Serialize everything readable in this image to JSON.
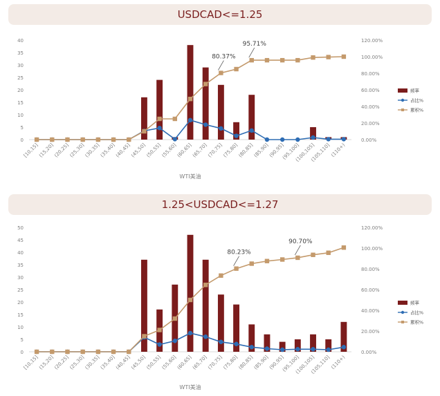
{
  "chart_data": [
    {
      "type": "bar",
      "title": "USDCAD<=1.25",
      "xlabel": "WTI美油",
      "categories": [
        "[10,15]",
        "(15,20]",
        "(20,25]",
        "(25,30]",
        "(30,35]",
        "(35,40]",
        "(40,45]",
        "(45,50]",
        "(50,55]",
        "(55,60]",
        "(60,65]",
        "(65,70]",
        "(70,75]",
        "(75,80]",
        "(80,85]",
        "(85,90]",
        "(90,95]",
        "(95,100]",
        "(100,105]",
        "(105,110]",
        "(110+)"
      ],
      "ylim": [
        0,
        40
      ],
      "yticks": [
        "0",
        "5",
        "10",
        "15",
        "20",
        "25",
        "30",
        "35",
        "40"
      ],
      "y2lim": [
        0,
        1.2
      ],
      "y2ticks": [
        "0.00%",
        "20.00%",
        "40.00%",
        "60.00%",
        "80.00%",
        "100.00%",
        "120.00%"
      ],
      "legend_position": "right",
      "series": [
        {
          "name": "频率",
          "kind": "bar",
          "axis": "left",
          "color": "#7b1c1c",
          "values": [
            0,
            0,
            0,
            0,
            0,
            0,
            0,
            17,
            24,
            1,
            38,
            29,
            22,
            7,
            18,
            0,
            0,
            0,
            5,
            1,
            1
          ]
        },
        {
          "name": "占比%",
          "kind": "line",
          "axis": "right",
          "color": "#2e6db4",
          "values": [
            0,
            0,
            0,
            0,
            0,
            0,
            0,
            0.105,
            0.14,
            0.005,
            0.235,
            0.18,
            0.135,
            0.045,
            0.11,
            0,
            0,
            0,
            0.025,
            0.005,
            0.005
          ]
        },
        {
          "name": "累积%",
          "kind": "line",
          "axis": "right",
          "color": "#c49a6c",
          "values": [
            0,
            0,
            0,
            0,
            0,
            0,
            0,
            0.1,
            0.25,
            0.25,
            0.49,
            0.67,
            0.8037,
            0.85,
            0.9571,
            0.9571,
            0.9571,
            0.9571,
            0.99,
            0.995,
            1.0
          ]
        }
      ],
      "annotations": [
        {
          "text": "80.37%",
          "index": 12
        },
        {
          "text": "95.71%",
          "index": 14
        }
      ]
    },
    {
      "type": "bar",
      "title": "1.25<USDCAD<=1.27",
      "xlabel": "WTI美油",
      "categories": [
        "[10,15]",
        "(15,20]",
        "(20,25]",
        "(25,30]",
        "(30,35]",
        "(35,40]",
        "(40,45]",
        "(45,50]",
        "(50,55]",
        "(55,60]",
        "(60,65]",
        "(65,70]",
        "(70,75]",
        "(75,80]",
        "(80,85]",
        "(85,90]",
        "(90,95]",
        "(95,100]",
        "(100,105]",
        "(105,110]",
        "(110+)"
      ],
      "ylim": [
        0,
        50
      ],
      "yticks": [
        "0",
        "5",
        "10",
        "15",
        "20",
        "25",
        "30",
        "35",
        "40",
        "45",
        "50"
      ],
      "y2lim": [
        0,
        1.2
      ],
      "y2ticks": [
        "0.00%",
        "20.00%",
        "40.00%",
        "60.00%",
        "80.00%",
        "100.00%",
        "120.00%"
      ],
      "legend_position": "right",
      "series": [
        {
          "name": "频率",
          "kind": "bar",
          "axis": "left",
          "color": "#7b1c1c",
          "values": [
            0,
            0,
            0,
            0,
            0,
            0,
            0,
            37,
            17,
            27,
            47,
            37,
            23,
            19,
            11,
            7,
            4,
            5,
            7,
            5,
            12
          ]
        },
        {
          "name": "占比%",
          "kind": "line",
          "axis": "right",
          "color": "#2e6db4",
          "values": [
            0,
            0,
            0,
            0,
            0,
            0,
            0,
            0.14,
            0.07,
            0.105,
            0.18,
            0.145,
            0.095,
            0.075,
            0.045,
            0.03,
            0.02,
            0.025,
            0.025,
            0.02,
            0.045
          ]
        },
        {
          "name": "累积%",
          "kind": "line",
          "axis": "right",
          "color": "#c49a6c",
          "values": [
            0,
            0,
            0,
            0,
            0,
            0,
            0,
            0.15,
            0.21,
            0.32,
            0.5,
            0.645,
            0.735,
            0.8023,
            0.85,
            0.875,
            0.89,
            0.907,
            0.935,
            0.955,
            1.005
          ]
        }
      ],
      "annotations": [
        {
          "text": "80.23%",
          "index": 13
        },
        {
          "text": "90.70%",
          "index": 17
        }
      ]
    }
  ]
}
